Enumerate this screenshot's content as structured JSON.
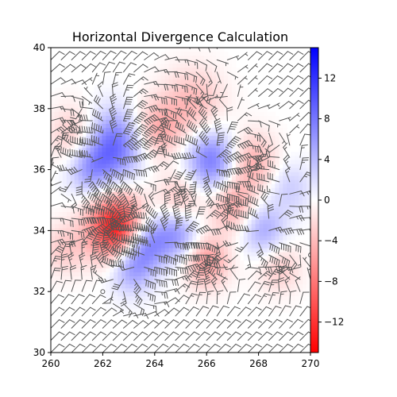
{
  "chart_data": {
    "type": "heatmap",
    "title": "Horizontal Divergence Calculation",
    "xlabel": "",
    "ylabel": "",
    "xlim": [
      260,
      270
    ],
    "ylim": [
      30,
      40
    ],
    "x_ticks": [
      260,
      262,
      264,
      266,
      268,
      270
    ],
    "y_ticks": [
      30,
      32,
      34,
      36,
      38,
      40
    ],
    "colorbar": {
      "cmap": "bwr_r",
      "vmin": -15,
      "vmax": 15,
      "ticks": [
        -12,
        -8,
        -4,
        0,
        4,
        8,
        12
      ],
      "low_color": "#ff0000",
      "mid_color": "#ffffff",
      "high_color": "#0000ff"
    },
    "field_centers": [
      {
        "x": 262.5,
        "y": 34.1,
        "value": -14,
        "sigma": 0.75
      },
      {
        "x": 263.7,
        "y": 33.6,
        "value": 7,
        "sigma": 0.6
      },
      {
        "x": 263.1,
        "y": 32.8,
        "value": 6,
        "sigma": 0.6
      },
      {
        "x": 262.4,
        "y": 36.8,
        "value": 9,
        "sigma": 0.8
      },
      {
        "x": 261.5,
        "y": 36.0,
        "value": 5,
        "sigma": 0.6
      },
      {
        "x": 261.0,
        "y": 37.1,
        "value": -4,
        "sigma": 0.7
      },
      {
        "x": 264.1,
        "y": 37.3,
        "value": -5,
        "sigma": 0.7
      },
      {
        "x": 265.5,
        "y": 38.2,
        "value": -4,
        "sigma": 0.8
      },
      {
        "x": 266.2,
        "y": 36.3,
        "value": 8,
        "sigma": 0.7
      },
      {
        "x": 267.7,
        "y": 36.2,
        "value": -5,
        "sigma": 0.7
      },
      {
        "x": 265.0,
        "y": 35.0,
        "value": -4,
        "sigma": 0.6
      },
      {
        "x": 264.9,
        "y": 33.9,
        "value": 6,
        "sigma": 0.6
      },
      {
        "x": 266.0,
        "y": 33.0,
        "value": -6,
        "sigma": 0.6
      },
      {
        "x": 267.0,
        "y": 34.8,
        "value": -5,
        "sigma": 0.6
      },
      {
        "x": 268.2,
        "y": 34.0,
        "value": 5,
        "sigma": 0.6
      },
      {
        "x": 268.8,
        "y": 32.8,
        "value": -3,
        "sigma": 0.6
      },
      {
        "x": 269.2,
        "y": 35.4,
        "value": 3,
        "sigma": 0.6
      },
      {
        "x": 260.5,
        "y": 33.4,
        "value": -3,
        "sigma": 0.6
      }
    ],
    "wind_barbs": {
      "grid_x_start": 260.0,
      "grid_x_step": 0.4,
      "grid_x_count": 26,
      "grid_y_start": 30.0,
      "grid_y_step": 0.4,
      "grid_y_count": 26,
      "background_direction_deg": 225,
      "background_speed_kt": 25
    }
  }
}
